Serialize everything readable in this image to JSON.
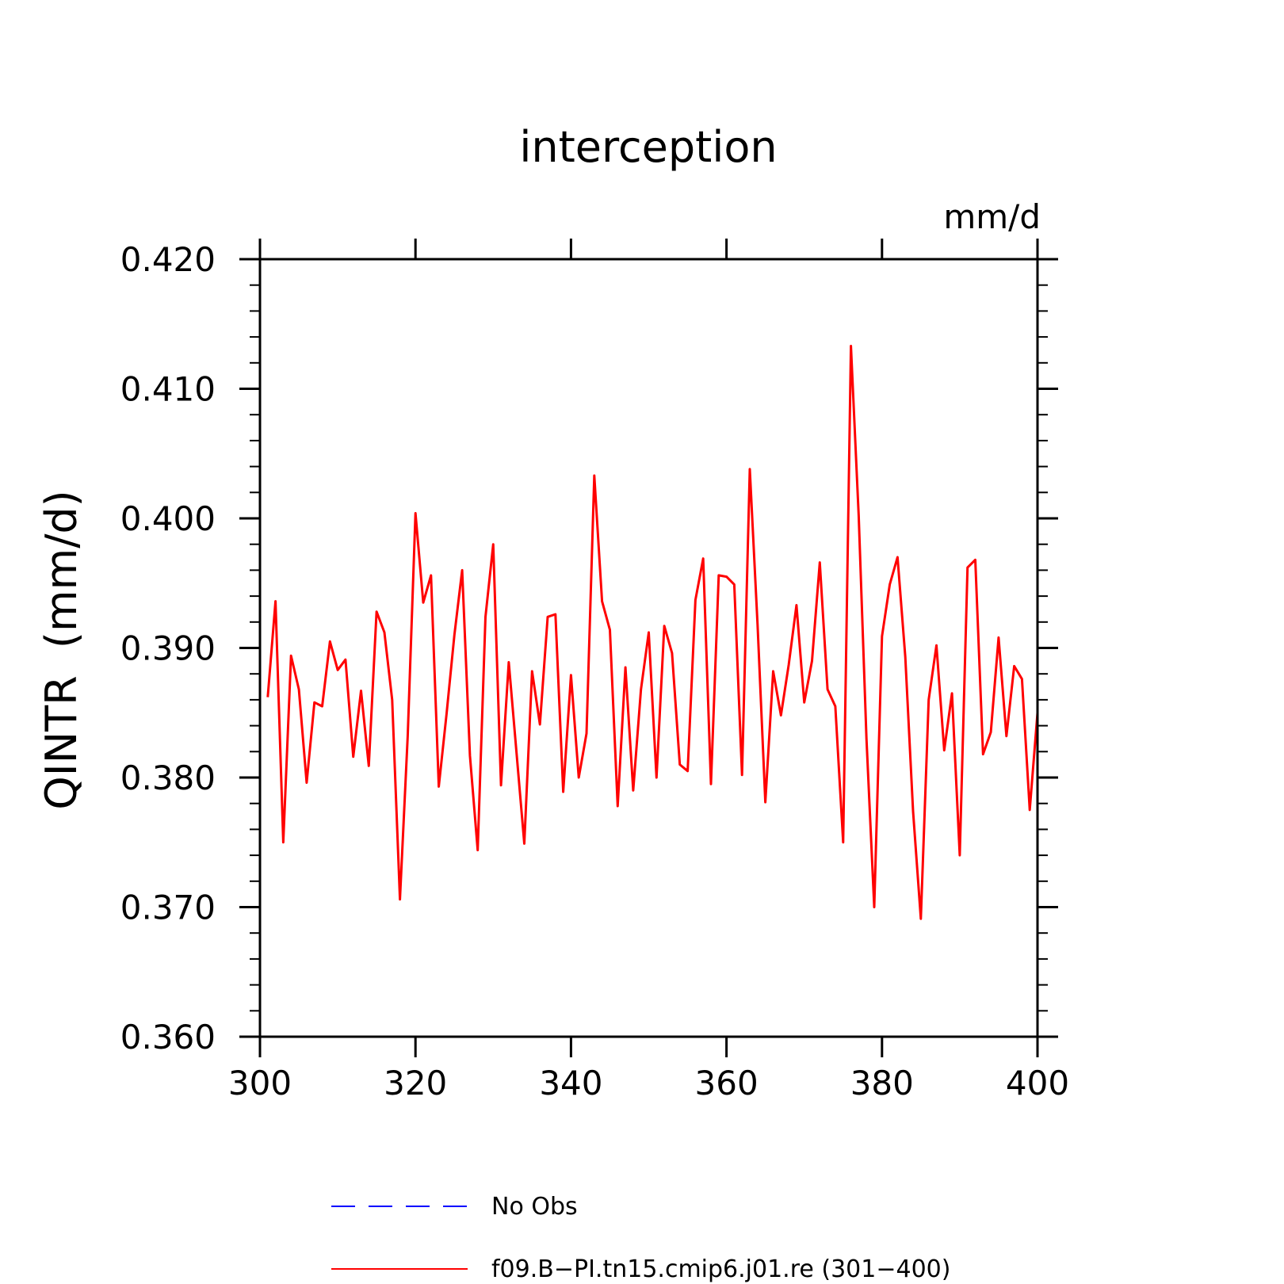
{
  "chart_data": {
    "type": "line",
    "title": "interception",
    "units_label": "mm/d",
    "ylabel": "QINTR  (mm/d)",
    "xlabel": "",
    "xlim": [
      300,
      400
    ],
    "ylim": [
      0.36,
      0.42
    ],
    "x_ticks": [
      "300",
      "320",
      "340",
      "360",
      "380",
      "400"
    ],
    "y_ticks": [
      "0.360",
      "0.370",
      "0.380",
      "0.390",
      "0.400",
      "0.410",
      "0.420"
    ],
    "grid": false,
    "legend_position": "bottom",
    "series": [
      {
        "name": "No Obs",
        "color": "#0000ff",
        "dash": "dashed",
        "x": [],
        "y": []
      },
      {
        "name": "f09.B−PI.tn15.cmip6.j01.re (301−400)",
        "color": "#ff0000",
        "dash": "solid",
        "x": [
          301,
          302,
          303,
          304,
          305,
          306,
          307,
          308,
          309,
          310,
          311,
          312,
          313,
          314,
          315,
          316,
          317,
          318,
          319,
          320,
          321,
          322,
          323,
          324,
          325,
          326,
          327,
          328,
          329,
          330,
          331,
          332,
          333,
          334,
          335,
          336,
          337,
          338,
          339,
          340,
          341,
          342,
          343,
          344,
          345,
          346,
          347,
          348,
          349,
          350,
          351,
          352,
          353,
          354,
          355,
          356,
          357,
          358,
          359,
          360,
          361,
          362,
          363,
          364,
          365,
          366,
          367,
          368,
          369,
          370,
          371,
          372,
          373,
          374,
          375,
          376,
          377,
          378,
          379,
          380,
          381,
          382,
          383,
          384,
          385,
          386,
          387,
          388,
          389,
          390,
          391,
          392,
          393,
          394,
          395,
          396,
          397,
          398,
          399,
          400
        ],
        "y": [
          0.3862,
          0.3936,
          0.375,
          0.3894,
          0.3868,
          0.3796,
          0.3858,
          0.3855,
          0.3905,
          0.3883,
          0.3891,
          0.3816,
          0.3867,
          0.3809,
          0.3928,
          0.3912,
          0.386,
          0.3706,
          0.3832,
          0.4004,
          0.3935,
          0.3956,
          0.3793,
          0.3849,
          0.391,
          0.396,
          0.3817,
          0.3744,
          0.3924,
          0.398,
          0.3794,
          0.3889,
          0.3819,
          0.3749,
          0.3882,
          0.3841,
          0.3924,
          0.3926,
          0.3789,
          0.3879,
          0.38,
          0.3834,
          0.4033,
          0.3936,
          0.3914,
          0.3778,
          0.3885,
          0.379,
          0.3868,
          0.3912,
          0.38,
          0.3917,
          0.3896,
          0.381,
          0.3805,
          0.3937,
          0.3969,
          0.3795,
          0.3956,
          0.3955,
          0.3949,
          0.3802,
          0.4038,
          0.3918,
          0.3781,
          0.3882,
          0.3848,
          0.3887,
          0.3933,
          0.3858,
          0.389,
          0.3966,
          0.3868,
          0.3855,
          0.375,
          0.4133,
          0.4002,
          0.383,
          0.37,
          0.3909,
          0.3949,
          0.397,
          0.3893,
          0.3774,
          0.3691,
          0.386,
          0.3902,
          0.3821,
          0.3865,
          0.374,
          0.3962,
          0.3968,
          0.3818,
          0.3835,
          0.3908,
          0.3832,
          0.3886,
          0.3876,
          0.3775,
          0.385
        ]
      }
    ]
  }
}
